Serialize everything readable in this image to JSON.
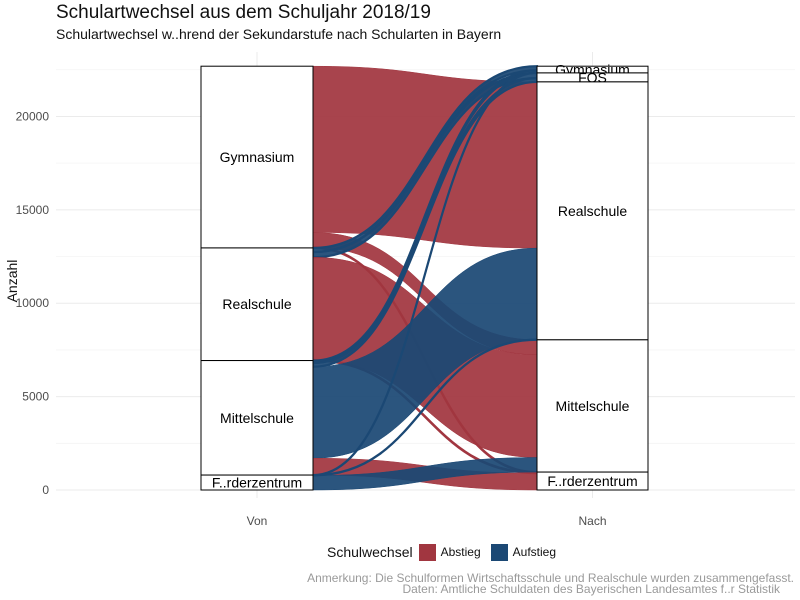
{
  "title": "Schulartwechsel aus dem Schuljahr 2018/19",
  "subtitle": "Schulartwechsel w..hrend der Sekundarstufe nach Schularten in Bayern",
  "caption_note": "Anmerkung: Die Schulformen Wirtschaftsschule und Realschule wurden zusammengefasst.",
  "caption_source": "Daten: Amtliche Schuldaten des Bayerischen Landesamtes f..r Statistik",
  "colors": {
    "Abstieg": "#a13640",
    "Aufstieg": "#1b4874"
  },
  "chart_data": {
    "type": "alluvial",
    "xlabel": "",
    "ylabel": "Anzahl",
    "ylim": [
      0,
      23000
    ],
    "yticks": [
      0,
      5000,
      10000,
      15000,
      20000
    ],
    "axes": [
      "Von",
      "Nach"
    ],
    "legend_title": "Schulwechsel",
    "legend_position": "bottom",
    "grid": true,
    "stratum_labels": {
      "Gymnasium": "Gymnasium",
      "FOS": "FOS",
      "Realschule": "Realschule",
      "Mittelschule": "Mittelschule",
      "Foerderzentrum": "F..rderzentrum"
    },
    "strata_von": [
      "Gymnasium",
      "Realschule",
      "Mittelschule",
      "Foerderzentrum"
    ],
    "strata_nach": [
      "Gymnasium",
      "FOS",
      "Realschule",
      "Mittelschule",
      "Foerderzentrum"
    ],
    "flows": [
      {
        "von": "Gymnasium",
        "nach": "Realschule",
        "value": 8900,
        "type": "Abstieg"
      },
      {
        "von": "Gymnasium",
        "nach": "Mittelschule",
        "value": 800,
        "type": "Abstieg"
      },
      {
        "von": "Gymnasium",
        "nach": "Foerderzentrum",
        "value": 30,
        "type": "Abstieg"
      },
      {
        "von": "Realschule",
        "nach": "Gymnasium",
        "value": 220,
        "type": "Aufstieg"
      },
      {
        "von": "Realschule",
        "nach": "FOS",
        "value": 280,
        "type": "Aufstieg"
      },
      {
        "von": "Realschule",
        "nach": "Mittelschule",
        "value": 5500,
        "type": "Abstieg"
      },
      {
        "von": "Realschule",
        "nach": "Foerderzentrum",
        "value": 30,
        "type": "Abstieg"
      },
      {
        "von": "Mittelschule",
        "nach": "Gymnasium",
        "value": 130,
        "type": "Aufstieg"
      },
      {
        "von": "Mittelschule",
        "nach": "FOS",
        "value": 200,
        "type": "Aufstieg"
      },
      {
        "von": "Mittelschule",
        "nach": "Realschule",
        "value": 4900,
        "type": "Aufstieg"
      },
      {
        "von": "Mittelschule",
        "nach": "Foerderzentrum",
        "value": 900,
        "type": "Abstieg"
      },
      {
        "von": "Foerderzentrum",
        "nach": "Gymnasium",
        "value": 10,
        "type": "Aufstieg"
      },
      {
        "von": "Foerderzentrum",
        "nach": "Realschule",
        "value": 10,
        "type": "Aufstieg"
      },
      {
        "von": "Foerderzentrum",
        "nach": "Mittelschule",
        "value": 780,
        "type": "Aufstieg"
      }
    ]
  }
}
